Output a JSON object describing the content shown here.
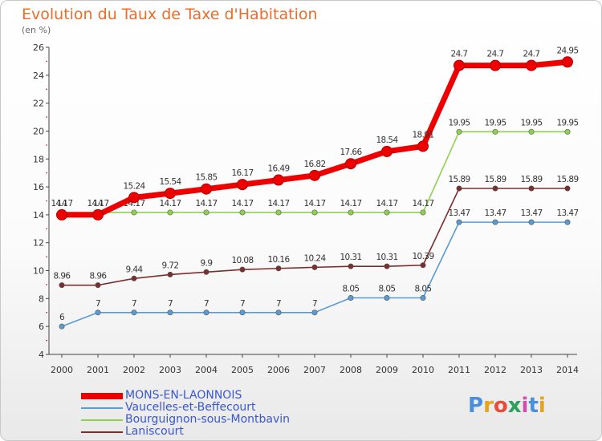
{
  "title": "Evolution du Taux de Taxe d'Habitation",
  "unit": "(en %)",
  "logo": "Proxiti",
  "chart_data": {
    "type": "line",
    "x": [
      "2000",
      "2001",
      "2002",
      "2003",
      "2004",
      "2005",
      "2006",
      "2007",
      "2008",
      "2009",
      "2010",
      "2011",
      "2012",
      "2013",
      "2014"
    ],
    "yticks": [
      4,
      6,
      8,
      10,
      12,
      14,
      16,
      18,
      20,
      22,
      24,
      26
    ],
    "ylim": [
      4,
      26
    ],
    "grid": false,
    "legend_position": "bottom-left",
    "series": [
      {
        "name": "MONS-EN-LAONNOIS",
        "color": "#ee0000",
        "values": [
          14.0,
          14.0,
          15.24,
          15.54,
          15.85,
          16.17,
          16.49,
          16.82,
          17.66,
          18.54,
          18.91,
          24.7,
          24.7,
          24.7,
          24.95
        ],
        "labels": [
          "14",
          "14",
          "15.24",
          "15.54",
          "15.85",
          "16.17",
          "16.49",
          "16.82",
          "17.66",
          "18.54",
          "18.91",
          "24.7",
          "24.7",
          "24.7",
          "24.95"
        ]
      },
      {
        "name": "Vaucelles-et-Beffecourt",
        "color": "#5b9bd5",
        "values": [
          6,
          7,
          7,
          7,
          7,
          7,
          7,
          7,
          8.05,
          8.05,
          8.05,
          13.47,
          13.47,
          13.47,
          13.47
        ],
        "labels": [
          "6",
          "7",
          "7",
          "7",
          "7",
          "7",
          "7",
          "7",
          "8.05",
          "8.05",
          "8.05",
          "13.47",
          "13.47",
          "13.47",
          "13.47"
        ]
      },
      {
        "name": "Bourguignon-sous-Montbavin",
        "color": "#8fd14f",
        "values": [
          14.17,
          14.17,
          14.17,
          14.17,
          14.17,
          14.17,
          14.17,
          14.17,
          14.17,
          14.17,
          14.17,
          19.95,
          19.95,
          19.95,
          19.95
        ],
        "labels": [
          "14.17",
          "14.17",
          "14.17",
          "14.17",
          "14.17",
          "14.17",
          "14.17",
          "14.17",
          "14.17",
          "14.17",
          "14.17",
          "19.95",
          "19.95",
          "19.95",
          "19.95"
        ]
      },
      {
        "name": "Laniscourt",
        "color": "#7b2e2e",
        "values": [
          8.96,
          8.96,
          9.44,
          9.72,
          9.9,
          10.08,
          10.16,
          10.24,
          10.31,
          10.31,
          10.39,
          15.89,
          15.89,
          15.89,
          15.89
        ],
        "labels": [
          "8.96",
          "8.96",
          "9.44",
          "9.72",
          "9.9",
          "10.08",
          "10.16",
          "10.24",
          "10.31",
          "10.31",
          "10.39",
          "15.89",
          "15.89",
          "15.89",
          "15.89"
        ]
      }
    ]
  }
}
